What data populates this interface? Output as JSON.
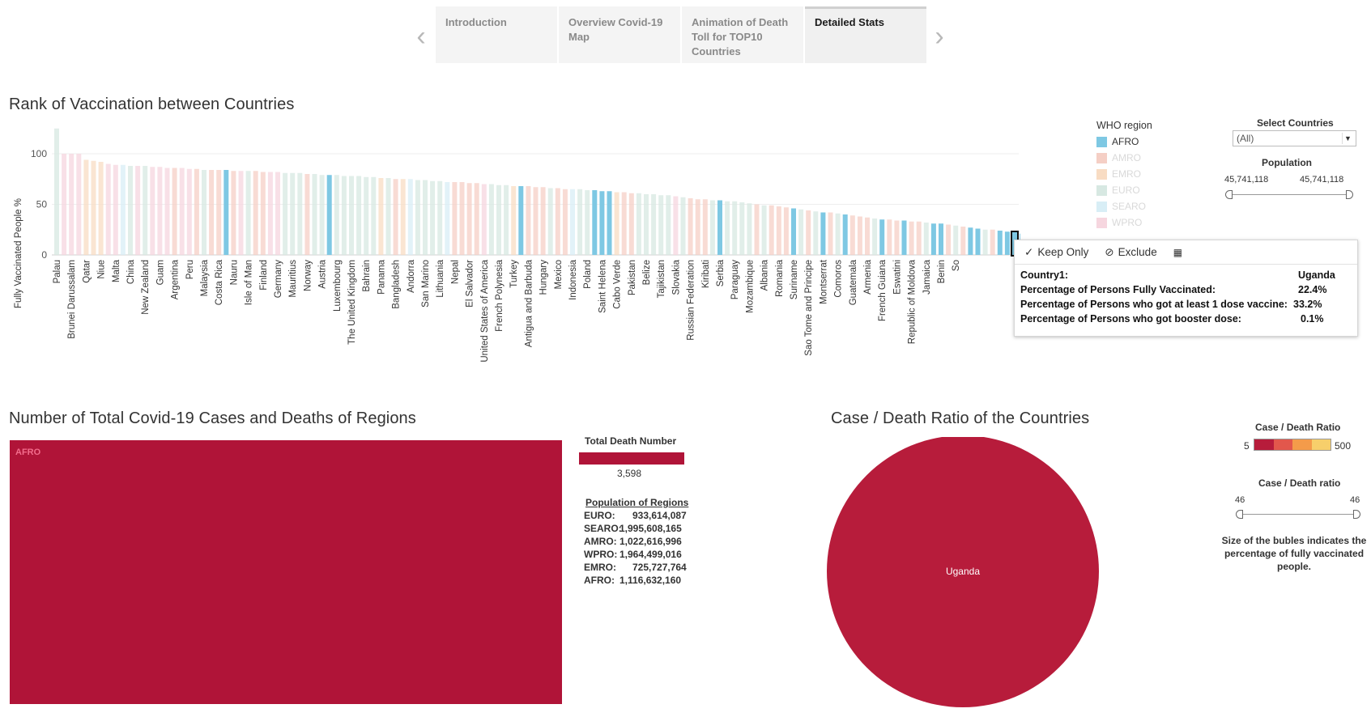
{
  "nav": {
    "prev_icon": "chevron-left-icon",
    "next_icon": "chevron-right-icon",
    "tabs": [
      {
        "label": "Introduction"
      },
      {
        "label": "Overview Covid-19 Map"
      },
      {
        "label": "Animation of Death Toll for TOP10 Countries"
      },
      {
        "label": "Detailed Stats"
      }
    ]
  },
  "vacc_chart": {
    "title": "Rank of Vaccination between Countries",
    "ylabel": "Fully Vaccinated People %",
    "yticks": [
      "100",
      "50",
      "0"
    ]
  },
  "legend": {
    "title": "WHO region",
    "items": [
      {
        "label": "AFRO",
        "color": "#7ec8e3"
      },
      {
        "label": "AMRO",
        "color": "#f5cfc5"
      },
      {
        "label": "EMRO",
        "color": "#f8dcc3"
      },
      {
        "label": "EURO",
        "color": "#d7e8e2"
      },
      {
        "label": "SEARO",
        "color": "#d8eef6"
      },
      {
        "label": "WPRO",
        "color": "#f6d6df"
      }
    ]
  },
  "filters": {
    "select_title": "Select Countries",
    "select_value": "(All)",
    "population_title": "Population",
    "population_min": "45,741,118",
    "population_max": "45,741,118"
  },
  "tooltip": {
    "keep_only": "Keep Only",
    "exclude": "Exclude",
    "rows": [
      {
        "label": "Country1:",
        "value": "Uganda"
      },
      {
        "label": "Percentage of Persons Fully Vaccinated:",
        "value": "22.4%"
      },
      {
        "label": "Percentage of Persons who got at least 1 dose vaccine:",
        "value": "33.2%"
      },
      {
        "label": "Percentage of Persons who got booster dose:",
        "value": "0.1%"
      }
    ]
  },
  "chart_data": {
    "type": "bar",
    "title": "Rank of Vaccination between Countries",
    "ylabel": "Fully Vaccinated People %",
    "ylim": [
      0,
      125
    ],
    "highlight_color": "#7ec8e3",
    "region_colors": {
      "AFRO": "#7ec8e3",
      "AMRO": "#f5cfc5",
      "EMRO": "#f8dcc3",
      "EURO": "#d7e8e2",
      "SEARO": "#d8eef6",
      "WPRO": "#f6d6df"
    },
    "categories": [
      "Palau",
      "Brunei Darussalam",
      "Qatar",
      "Niue",
      "Malta",
      "China",
      "New Zealand",
      "Guam",
      "Argentina",
      "Peru",
      "Malaysia",
      "Costa Rica",
      "Nauru",
      "Isle of Man",
      "Finland",
      "Germany",
      "Mauritius",
      "Norway",
      "Austria",
      "Luxembourg",
      "The United Kingdom",
      "Bahrain",
      "Panama",
      "Bangladesh",
      "Andorra",
      "San Marino",
      "Lithuania",
      "Nepal",
      "El Salvador",
      "United States of America",
      "French Polynesia",
      "Turkey",
      "Antigua and Barbuda",
      "Hungary",
      "Mexico",
      "Indonesia",
      "Poland",
      "Saint Helena",
      "Cabo Verde",
      "Pakistan",
      "Belize",
      "Tajikistan",
      "Slovakia",
      "Russian Federation",
      "Kiribati",
      "Serbia",
      "Paraguay",
      "Mozambique",
      "Albania",
      "Romania",
      "Suriname",
      "Sao Tome and Principe",
      "Montserrat",
      "Comoros",
      "Guatemala",
      "Armenia",
      "French Guiana",
      "Eswatini",
      "Republic of Moldova",
      "Jamaica",
      "Benin",
      "So"
    ],
    "bars": [
      {
        "v": 125,
        "r": "EURO"
      },
      {
        "v": 100,
        "r": "WPRO"
      },
      {
        "v": 100,
        "r": "WPRO"
      },
      {
        "v": 100,
        "r": "WPRO"
      },
      {
        "v": 94,
        "r": "EMRO"
      },
      {
        "v": 93,
        "r": "EMRO"
      },
      {
        "v": 92,
        "r": "EMRO"
      },
      {
        "v": 90,
        "r": "WPRO"
      },
      {
        "v": 89,
        "r": "WPRO"
      },
      {
        "v": 89,
        "r": "SEARO"
      },
      {
        "v": 88,
        "r": "EURO"
      },
      {
        "v": 88,
        "r": "WPRO"
      },
      {
        "v": 88,
        "r": "EURO"
      },
      {
        "v": 87,
        "r": "WPRO"
      },
      {
        "v": 87,
        "r": "WPRO"
      },
      {
        "v": 86,
        "r": "WPRO"
      },
      {
        "v": 86,
        "r": "AMRO"
      },
      {
        "v": 86,
        "r": "WPRO"
      },
      {
        "v": 85,
        "r": "WPRO"
      },
      {
        "v": 85,
        "r": "AMRO"
      },
      {
        "v": 84,
        "r": "EURO"
      },
      {
        "v": 84,
        "r": "AMRO"
      },
      {
        "v": 84,
        "r": "AMRO"
      },
      {
        "v": 84,
        "r": "AFRO"
      },
      {
        "v": 83,
        "r": "AMRO"
      },
      {
        "v": 83,
        "r": "WPRO"
      },
      {
        "v": 83,
        "r": "EURO"
      },
      {
        "v": 83,
        "r": "AMRO"
      },
      {
        "v": 82,
        "r": "AMRO"
      },
      {
        "v": 82,
        "r": "WPRO"
      },
      {
        "v": 82,
        "r": "WPRO"
      },
      {
        "v": 81,
        "r": "EURO"
      },
      {
        "v": 81,
        "r": "EURO"
      },
      {
        "v": 81,
        "r": "EURO"
      },
      {
        "v": 80,
        "r": "AMRO"
      },
      {
        "v": 80,
        "r": "EURO"
      },
      {
        "v": 79,
        "r": "EURO"
      },
      {
        "v": 79,
        "r": "AFRO"
      },
      {
        "v": 79,
        "r": "EURO"
      },
      {
        "v": 78,
        "r": "EURO"
      },
      {
        "v": 78,
        "r": "EURO"
      },
      {
        "v": 78,
        "r": "EURO"
      },
      {
        "v": 77,
        "r": "EURO"
      },
      {
        "v": 77,
        "r": "EURO"
      },
      {
        "v": 76,
        "r": "EMRO"
      },
      {
        "v": 76,
        "r": "EURO"
      },
      {
        "v": 75,
        "r": "AMRO"
      },
      {
        "v": 75,
        "r": "EMRO"
      },
      {
        "v": 75,
        "r": "SEARO"
      },
      {
        "v": 74,
        "r": "EURO"
      },
      {
        "v": 74,
        "r": "EURO"
      },
      {
        "v": 73,
        "r": "EURO"
      },
      {
        "v": 73,
        "r": "EURO"
      },
      {
        "v": 72,
        "r": "SEARO"
      },
      {
        "v": 72,
        "r": "AMRO"
      },
      {
        "v": 72,
        "r": "AMRO"
      },
      {
        "v": 71,
        "r": "AMRO"
      },
      {
        "v": 71,
        "r": "AMRO"
      },
      {
        "v": 70,
        "r": "WPRO"
      },
      {
        "v": 70,
        "r": "EURO"
      },
      {
        "v": 69,
        "r": "EURO"
      },
      {
        "v": 69,
        "r": "EURO"
      },
      {
        "v": 68,
        "r": "EMRO"
      },
      {
        "v": 68,
        "r": "AFRO"
      },
      {
        "v": 68,
        "r": "AMRO"
      },
      {
        "v": 67,
        "r": "AMRO"
      },
      {
        "v": 67,
        "r": "AMRO"
      },
      {
        "v": 66,
        "r": "EURO"
      },
      {
        "v": 66,
        "r": "AMRO"
      },
      {
        "v": 65,
        "r": "AMRO"
      },
      {
        "v": 65,
        "r": "SEARO"
      },
      {
        "v": 65,
        "r": "EURO"
      },
      {
        "v": 64,
        "r": "EURO"
      },
      {
        "v": 64,
        "r": "AFRO"
      },
      {
        "v": 63,
        "r": "AFRO"
      },
      {
        "v": 63,
        "r": "AFRO"
      },
      {
        "v": 62,
        "r": "EMRO"
      },
      {
        "v": 62,
        "r": "AMRO"
      },
      {
        "v": 61,
        "r": "AMRO"
      },
      {
        "v": 61,
        "r": "EURO"
      },
      {
        "v": 60,
        "r": "EURO"
      },
      {
        "v": 60,
        "r": "EURO"
      },
      {
        "v": 59,
        "r": "EURO"
      },
      {
        "v": 59,
        "r": "EURO"
      },
      {
        "v": 58,
        "r": "WPRO"
      },
      {
        "v": 57,
        "r": "EURO"
      },
      {
        "v": 56,
        "r": "AMRO"
      },
      {
        "v": 55,
        "r": "AMRO"
      },
      {
        "v": 55,
        "r": "AMRO"
      },
      {
        "v": 54,
        "r": "EURO"
      },
      {
        "v": 54,
        "r": "AFRO"
      },
      {
        "v": 53,
        "r": "EURO"
      },
      {
        "v": 53,
        "r": "EURO"
      },
      {
        "v": 52,
        "r": "EURO"
      },
      {
        "v": 51,
        "r": "EURO"
      },
      {
        "v": 50,
        "r": "AMRO"
      },
      {
        "v": 49,
        "r": "EURO"
      },
      {
        "v": 49,
        "r": "AMRO"
      },
      {
        "v": 48,
        "r": "AMRO"
      },
      {
        "v": 47,
        "r": "AMRO"
      },
      {
        "v": 46,
        "r": "AFRO"
      },
      {
        "v": 45,
        "r": "EURO"
      },
      {
        "v": 44,
        "r": "AMRO"
      },
      {
        "v": 43,
        "r": "EURO"
      },
      {
        "v": 42,
        "r": "AFRO"
      },
      {
        "v": 42,
        "r": "AMRO"
      },
      {
        "v": 41,
        "r": "EURO"
      },
      {
        "v": 40,
        "r": "AFRO"
      },
      {
        "v": 39,
        "r": "AMRO"
      },
      {
        "v": 38,
        "r": "AMRO"
      },
      {
        "v": 37,
        "r": "AMRO"
      },
      {
        "v": 36,
        "r": "EURO"
      },
      {
        "v": 35,
        "r": "AFRO"
      },
      {
        "v": 35,
        "r": "AMRO"
      },
      {
        "v": 34,
        "r": "AMRO"
      },
      {
        "v": 34,
        "r": "AFRO"
      },
      {
        "v": 33,
        "r": "AMRO"
      },
      {
        "v": 33,
        "r": "AMRO"
      },
      {
        "v": 32,
        "r": "EURO"
      },
      {
        "v": 31,
        "r": "AFRO"
      },
      {
        "v": 31,
        "r": "AFRO"
      },
      {
        "v": 30,
        "r": "AMRO"
      },
      {
        "v": 29,
        "r": "EURO"
      },
      {
        "v": 28,
        "r": "AMRO"
      },
      {
        "v": 27,
        "r": "AFRO"
      },
      {
        "v": 26,
        "r": "AFRO"
      },
      {
        "v": 25,
        "r": "EURO"
      },
      {
        "v": 25,
        "r": "AMRO"
      },
      {
        "v": 24,
        "r": "AFRO"
      },
      {
        "v": 23,
        "r": "AFRO"
      },
      {
        "v": 22.4,
        "r": "AFRO",
        "selected": true
      },
      {
        "v": 21,
        "r": "AFRO"
      }
    ]
  },
  "treemap": {
    "title": "Number of Total Covid-19 Cases and Deaths of Regions",
    "cell_label": "AFRO",
    "color": "#b01438",
    "death_title": "Total Death Number",
    "death_value": "3,598",
    "population_title": "Population of Regions",
    "population_rows": [
      {
        "label": "EURO:",
        "value": "933,614,087"
      },
      {
        "label": "SEARO:",
        "value": "1,995,608,165"
      },
      {
        "label": "AMRO:",
        "value": "1,022,616,996"
      },
      {
        "label": "WPRO:",
        "value": "1,964,499,016"
      },
      {
        "label": "EMRO:",
        "value": "725,727,764"
      },
      {
        "label": "AFRO:",
        "value": "1,116,632,160"
      }
    ]
  },
  "bubble": {
    "title": "Case / Death Ratio of the Countries",
    "label": "Uganda",
    "color": "#b71c3b",
    "ratio_legend_title": "Case / Death Ratio",
    "ratio_min": "5",
    "ratio_max": "500",
    "ratio_colors": [
      "#b71c3b",
      "#e2574c",
      "#f49b4a",
      "#f7cf6b"
    ],
    "filter_title": "Case / Death ratio",
    "filter_min": "46",
    "filter_max": "46",
    "note": "Size of the bubles indicates the percentage of fully vaccinated people."
  }
}
